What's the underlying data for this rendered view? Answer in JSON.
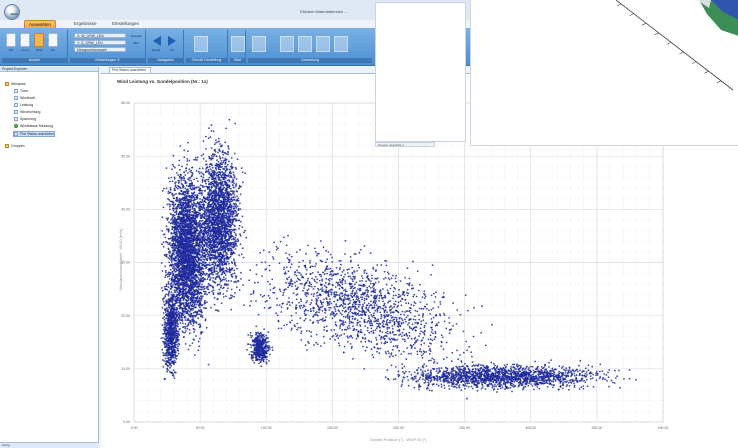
{
  "app": {
    "window_title": "DIAdem Materialbereich ...",
    "orb_label": "diam",
    "tabs": [
      {
        "label": "Auswahlen"
      },
      {
        "label": "Ergebnisse"
      },
      {
        "label": "Einstellungen"
      }
    ]
  },
  "ribbon": {
    "groups": [
      {
        "label": "Ansicht"
      },
      {
        "label": "Einstellungen X"
      },
      {
        "label": "Navigation"
      },
      {
        "label": "Gemäß Einstellung"
      },
      {
        "label": "Start"
      },
      {
        "label": "Darstellung"
      }
    ],
    "rows": [
      {
        "value": "X: W_GRW_LEN"
      },
      {
        "value": "Y: S_GRW_LEN"
      },
      {
        "value": "Messpunktauswahl"
      }
    ],
    "small_labels": [
      {
        "label": "Auswahl"
      },
      {
        "label": "Wert"
      }
    ],
    "big_buttons": [
      {
        "label": "Tab"
      },
      {
        "label": "Kurve"
      },
      {
        "label": "Wind"
      },
      {
        "label": "Ein"
      }
    ],
    "nav_labels": [
      {
        "label": "Zurück"
      },
      {
        "label": "Vor"
      }
    ]
  },
  "left_panel": {
    "header": "Projekt-Explorer",
    "tree": [
      {
        "label": "Windpark",
        "kind": "folder"
      },
      {
        "label": "Turm",
        "kind": "item"
      },
      {
        "label": "Windkraft",
        "kind": "item"
      },
      {
        "label": "Leistung",
        "kind": "item"
      },
      {
        "label": "Windrichtung",
        "kind": "item"
      },
      {
        "label": "Spannung",
        "kind": "item"
      },
      {
        "label": "Windklasse Messung",
        "kind": "green"
      },
      {
        "label": "Plot Status ausrichten",
        "kind": "selected"
      },
      {
        "label": "Gruppen",
        "kind": "folder"
      }
    ],
    "status": "Fertig"
  },
  "document": {
    "tab_label": "Plot Status ausrichten",
    "chart_title": "Wind Leistung vs. Gondelposition (Nr.: 1x)"
  },
  "overlay": {
    "tab_label": "Gruppe: Ergebnis 1"
  },
  "colors": {
    "points": "#1f2a9c",
    "grid": "#d9dde3",
    "ribbon": "#5a97d6"
  },
  "chart_data": {
    "type": "scatter",
    "xlabel": "Gondel Position [°] - WGP 01 [°]",
    "ylabel": "Windgeschwindigkeit - WIND [m/s]",
    "x_ticks": [
      "0.00",
      "50.00",
      "100.00",
      "150.00",
      "200.00",
      "250.00",
      "300.00",
      "350.00",
      "400.00"
    ],
    "y_ticks": [
      "0.00",
      "10.00",
      "20.00",
      "30.00",
      "40.00",
      "50.00",
      "60.00"
    ],
    "xlim": [
      0,
      400
    ],
    "ylim": [
      0,
      60
    ],
    "grid": true,
    "legend": "none",
    "clusters": [
      {
        "name": "main-peak",
        "x_center": 40,
        "x_spread": 10,
        "y_center": 32,
        "y_spread": 10,
        "count": 3200
      },
      {
        "name": "secondary-peak",
        "x_center": 65,
        "x_spread": 10,
        "y_center": 38,
        "y_spread": 9,
        "count": 2200
      },
      {
        "name": "lower-left",
        "x_center": 28,
        "x_spread": 4,
        "y_center": 17,
        "y_spread": 5,
        "count": 700
      },
      {
        "name": "shoulder",
        "x_center": 95,
        "x_spread": 5,
        "y_center": 14,
        "y_spread": 2,
        "count": 400
      },
      {
        "name": "decay-tail",
        "x_center": 170,
        "x_spread": 50,
        "y_center": 22,
        "y_spread": 6,
        "count": 1500
      },
      {
        "name": "low-tail",
        "x_center": 280,
        "x_spread": 50,
        "y_center": 8.5,
        "y_spread": 1.5,
        "count": 1600
      }
    ]
  }
}
